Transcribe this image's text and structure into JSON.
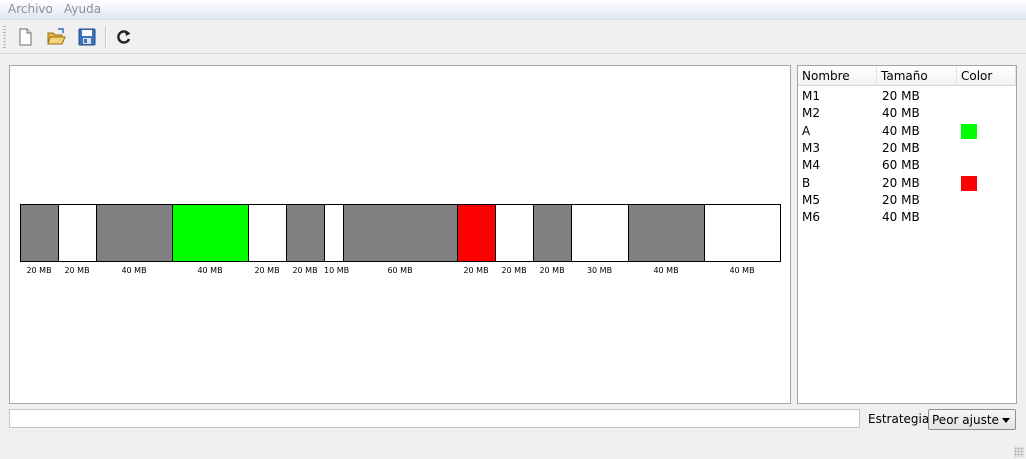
{
  "menu": {
    "archivo": "Archivo",
    "ayuda": "Ayuda"
  },
  "toolbar": {
    "icons": [
      "new-file-icon",
      "open-folder-icon",
      "save-icon",
      "refresh-icon"
    ]
  },
  "memory": {
    "blocks": [
      {
        "label": "20 MB",
        "size": 20,
        "color": "#808080"
      },
      {
        "label": "20 MB",
        "size": 20,
        "color": "#ffffff"
      },
      {
        "label": "40 MB",
        "size": 40,
        "color": "#808080"
      },
      {
        "label": "40 MB",
        "size": 40,
        "color": "#00ff00"
      },
      {
        "label": "20 MB",
        "size": 20,
        "color": "#ffffff"
      },
      {
        "label": "20 MB",
        "size": 20,
        "color": "#808080"
      },
      {
        "label": "10 MB",
        "size": 10,
        "color": "#ffffff"
      },
      {
        "label": "60 MB",
        "size": 60,
        "color": "#808080"
      },
      {
        "label": "20 MB",
        "size": 20,
        "color": "#ff0000"
      },
      {
        "label": "20 MB",
        "size": 20,
        "color": "#ffffff"
      },
      {
        "label": "20 MB",
        "size": 20,
        "color": "#808080"
      },
      {
        "label": "30 MB",
        "size": 30,
        "color": "#ffffff"
      },
      {
        "label": "40 MB",
        "size": 40,
        "color": "#808080"
      },
      {
        "label": "40 MB",
        "size": 40,
        "color": "#ffffff"
      }
    ]
  },
  "table": {
    "headers": {
      "nombre": "Nombre",
      "tamano": "Tamaño",
      "color": "Color"
    },
    "rows": [
      {
        "nombre": "M1",
        "tamano": "20 MB",
        "color": null
      },
      {
        "nombre": "M2",
        "tamano": "40 MB",
        "color": null
      },
      {
        "nombre": "A",
        "tamano": "40 MB",
        "color": "#00ff00"
      },
      {
        "nombre": "M3",
        "tamano": "20 MB",
        "color": null
      },
      {
        "nombre": "M4",
        "tamano": "60 MB",
        "color": null
      },
      {
        "nombre": "B",
        "tamano": "20 MB",
        "color": "#ff0000"
      },
      {
        "nombre": "M5",
        "tamano": "20 MB",
        "color": null
      },
      {
        "nombre": "M6",
        "tamano": "40 MB",
        "color": null
      }
    ]
  },
  "bottom": {
    "command_value": "",
    "strategy_label": "Estrategia:",
    "strategy_value": "Peor ajuste"
  }
}
